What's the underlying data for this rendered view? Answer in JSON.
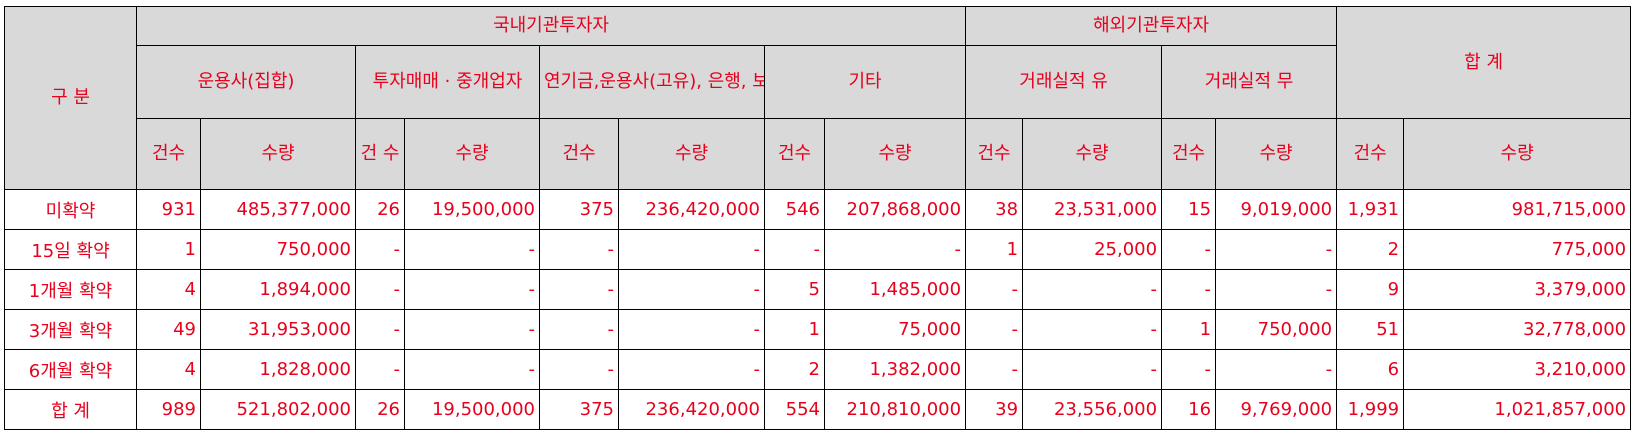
{
  "header": {
    "category": "구 분",
    "domestic": "국내기관투자자",
    "foreign": "해외기관투자자",
    "total": "합 계",
    "domestic_groups": [
      "운용사(집합)",
      "투자매매 · 중개업자",
      "연기금,운용사(고유), 은행, 보험",
      "기타"
    ],
    "foreign_groups": [
      "거래실적 유",
      "거래실적 무"
    ],
    "count": "건수",
    "count_narrow": "건 수",
    "quantity": "수량"
  },
  "rows": [
    {
      "label": "미확약",
      "values": [
        "931",
        "485,377,000",
        "26",
        "19,500,000",
        "375",
        "236,420,000",
        "546",
        "207,868,000",
        "38",
        "23,531,000",
        "15",
        "9,019,000",
        "1,931",
        "981,715,000"
      ]
    },
    {
      "label": "15일 확약",
      "values": [
        "1",
        "750,000",
        "-",
        "-",
        "-",
        "-",
        "-",
        "-",
        "1",
        "25,000",
        "-",
        "-",
        "2",
        "775,000"
      ]
    },
    {
      "label": "1개월 확약",
      "values": [
        "4",
        "1,894,000",
        "-",
        "-",
        "-",
        "-",
        "5",
        "1,485,000",
        "-",
        "-",
        "-",
        "-",
        "9",
        "3,379,000"
      ]
    },
    {
      "label": "3개월 확약",
      "values": [
        "49",
        "31,953,000",
        "-",
        "-",
        "-",
        "-",
        "1",
        "75,000",
        "-",
        "-",
        "1",
        "750,000",
        "51",
        "32,778,000"
      ]
    },
    {
      "label": "6개월 확약",
      "values": [
        "4",
        "1,828,000",
        "-",
        "-",
        "-",
        "-",
        "2",
        "1,382,000",
        "-",
        "-",
        "-",
        "-",
        "6",
        "3,210,000"
      ]
    },
    {
      "label": "합 계",
      "values": [
        "989",
        "521,802,000",
        "26",
        "19,500,000",
        "375",
        "236,420,000",
        "554",
        "210,810,000",
        "39",
        "23,556,000",
        "16",
        "9,769,000",
        "1,999",
        "1,021,857,000"
      ]
    }
  ],
  "colors": {
    "text": "#e8001c",
    "header_bg": "#d9d9d9",
    "border": "#000000"
  }
}
